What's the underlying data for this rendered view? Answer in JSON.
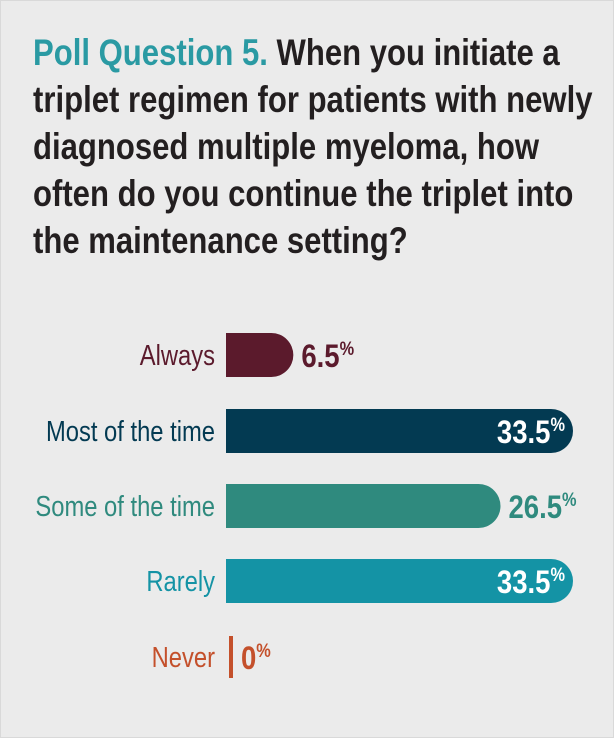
{
  "poll": {
    "label": "Poll Question 5.",
    "question": "When you initiate a triplet regimen for patients with newly diagnosed multiple myeloma, how often do you continue the triplet into the maintenance setting?"
  },
  "chart_data": {
    "type": "bar",
    "orientation": "horizontal",
    "categories": [
      "Always",
      "Most of the time",
      "Some of the time",
      "Rarely",
      "Never"
    ],
    "values": [
      6.5,
      33.5,
      26.5,
      33.5,
      0
    ],
    "value_suffix": "%",
    "colors": [
      "#5b1a2c",
      "#033a52",
      "#2f8a7e",
      "#1493a5",
      "#c4502b"
    ],
    "label_colors": [
      "#5b1a2c",
      "#033a52",
      "#2f8a7e",
      "#1493a5",
      "#c4502b"
    ],
    "value_label_inside": [
      false,
      true,
      false,
      true,
      false
    ],
    "xlim": [
      0,
      33.5
    ],
    "title": "",
    "xlabel": "",
    "ylabel": ""
  }
}
